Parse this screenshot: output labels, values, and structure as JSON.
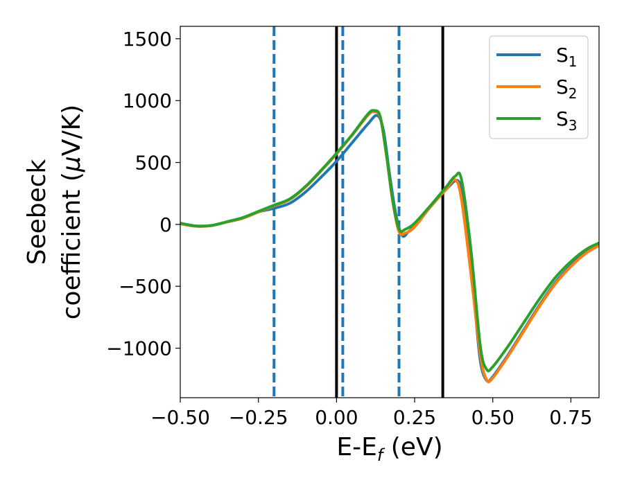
{
  "chart_data": {
    "type": "line",
    "title": "",
    "xlabel": {
      "main": "E-E",
      "sub": "f",
      "unit": " (eV)"
    },
    "ylabel": {
      "line1": "Seebeck",
      "line2": "coefficient  (",
      "mu": "μ",
      "line2_end": "V/K)"
    },
    "xlim": [
      -0.5,
      0.84
    ],
    "ylim": [
      -1400,
      1600
    ],
    "x_ticks": [
      -0.5,
      -0.25,
      0.0,
      0.25,
      0.5,
      0.75
    ],
    "x_tick_labels": [
      "−0.50",
      "−0.25",
      "0.00",
      "0.25",
      "0.50",
      "0.75"
    ],
    "y_ticks": [
      1500,
      1000,
      500,
      0,
      -500,
      -1000
    ],
    "y_tick_labels": [
      "1500",
      "1000",
      "500",
      "0",
      "−500",
      "−1000"
    ],
    "grid": false,
    "legend_position": "top-right",
    "vertical_lines": [
      {
        "x": -0.2,
        "style": "dashed",
        "color": "#1f77b4"
      },
      {
        "x": 0.0,
        "style": "solid",
        "color": "#000000"
      },
      {
        "x": 0.02,
        "style": "dashed",
        "color": "#1f77b4"
      },
      {
        "x": 0.2,
        "style": "dashed",
        "color": "#1f77b4"
      },
      {
        "x": 0.34,
        "style": "solid",
        "color": "#000000"
      }
    ],
    "series": [
      {
        "name": "S",
        "sub": "1",
        "color": "#1f77b4",
        "x": [
          -0.5,
          -0.45,
          -0.4,
          -0.35,
          -0.3,
          -0.25,
          -0.2,
          -0.15,
          -0.1,
          -0.05,
          0.0,
          0.05,
          0.1,
          0.13,
          0.15,
          0.17,
          0.19,
          0.21,
          0.23,
          0.25,
          0.3,
          0.35,
          0.39,
          0.41,
          0.44,
          0.46,
          0.48,
          0.5,
          0.55,
          0.6,
          0.65,
          0.7,
          0.75,
          0.8,
          0.84
        ],
        "y": [
          5,
          -15,
          -10,
          20,
          50,
          100,
          130,
          170,
          260,
          380,
          510,
          660,
          810,
          880,
          760,
          400,
          80,
          -90,
          -60,
          -10,
          140,
          280,
          350,
          120,
          -600,
          -1100,
          -1260,
          -1230,
          -1050,
          -850,
          -650,
          -470,
          -330,
          -220,
          -165
        ]
      },
      {
        "name": "S",
        "sub": "2",
        "color": "#ff7f0e",
        "x": [
          -0.5,
          -0.45,
          -0.4,
          -0.35,
          -0.3,
          -0.25,
          -0.2,
          -0.15,
          -0.1,
          -0.05,
          0.0,
          0.05,
          0.1,
          0.12,
          0.14,
          0.16,
          0.18,
          0.2,
          0.22,
          0.25,
          0.3,
          0.35,
          0.38,
          0.4,
          0.43,
          0.46,
          0.48,
          0.5,
          0.55,
          0.6,
          0.65,
          0.7,
          0.75,
          0.8,
          0.84
        ],
        "y": [
          5,
          -15,
          -10,
          20,
          50,
          100,
          150,
          200,
          300,
          430,
          570,
          720,
          880,
          910,
          860,
          550,
          180,
          -60,
          -70,
          -20,
          140,
          280,
          360,
          200,
          -400,
          -1050,
          -1255,
          -1240,
          -1060,
          -860,
          -660,
          -480,
          -340,
          -230,
          -170
        ]
      },
      {
        "name": "S",
        "sub": "3",
        "color": "#2ca02c",
        "x": [
          -0.5,
          -0.45,
          -0.4,
          -0.35,
          -0.3,
          -0.25,
          -0.2,
          -0.15,
          -0.1,
          -0.05,
          0.0,
          0.05,
          0.1,
          0.12,
          0.14,
          0.16,
          0.18,
          0.2,
          0.22,
          0.25,
          0.3,
          0.35,
          0.38,
          0.4,
          0.43,
          0.46,
          0.48,
          0.5,
          0.55,
          0.6,
          0.65,
          0.7,
          0.75,
          0.8,
          0.84
        ],
        "y": [
          10,
          -12,
          -8,
          22,
          55,
          105,
          155,
          205,
          305,
          435,
          575,
          725,
          890,
          920,
          870,
          560,
          190,
          -40,
          -40,
          10,
          150,
          300,
          390,
          360,
          -200,
          -980,
          -1170,
          -1150,
          -980,
          -790,
          -600,
          -430,
          -300,
          -200,
          -150
        ]
      }
    ]
  }
}
